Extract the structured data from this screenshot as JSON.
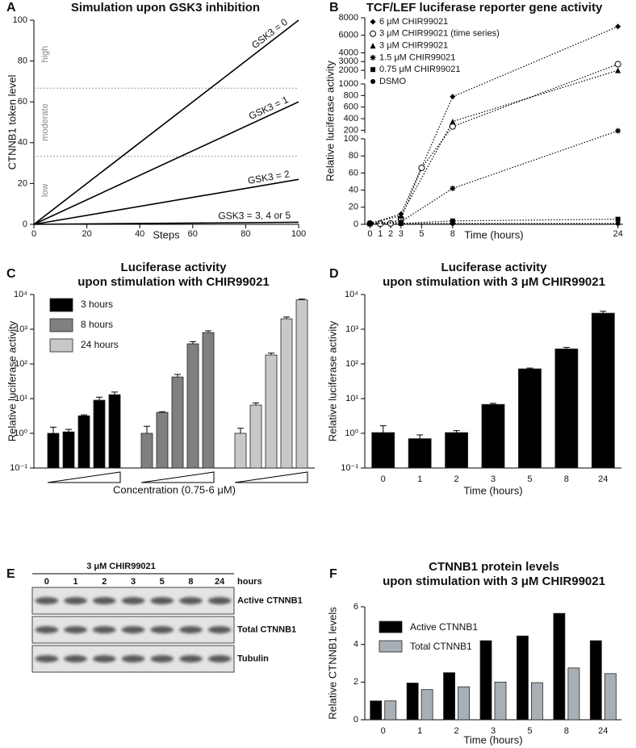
{
  "chart_data": [
    {
      "panel": "A",
      "type": "line",
      "title": [
        "Simulation upon GSK3 inhibition"
      ],
      "xlabel": "Steps",
      "ylabel": "CTNNB1 token level",
      "x": [
        0,
        100
      ],
      "xlim": [
        0,
        100
      ],
      "ylim": [
        0,
        100
      ],
      "xticks": [
        0,
        20,
        40,
        60,
        80,
        100
      ],
      "yticks": [
        0,
        20,
        40,
        60,
        80,
        100
      ],
      "line_labels": true,
      "regions": {
        "thresholds": [
          33.3,
          66.7
        ],
        "labels": [
          "low",
          "moderate",
          "high"
        ]
      },
      "series": [
        {
          "name": "GSK3 = 0",
          "color": "#000000",
          "values": [
            0,
            100
          ]
        },
        {
          "name": "GSK3 = 1",
          "color": "#000000",
          "values": [
            0,
            60
          ]
        },
        {
          "name": "GSK3 = 2",
          "color": "#000000",
          "values": [
            0,
            22
          ]
        },
        {
          "name": "GSK3 = 3, 4 or 5",
          "color": "#000000",
          "values": [
            0,
            1
          ]
        }
      ]
    },
    {
      "panel": "B",
      "type": "line",
      "title": [
        "TCF/LEF luciferase reporter gene activity"
      ],
      "xlabel": "Time (hours)",
      "ylabel": "Relative luciferase activity",
      "xlim": [
        -0.5,
        24.5
      ],
      "xticks": [
        0,
        1,
        2,
        3,
        5,
        8,
        24
      ],
      "legend": "upper left",
      "line_style": "dotted",
      "ysegments": [
        {
          "ylim": [
            0,
            100
          ],
          "yticks": [
            0,
            20,
            40,
            60,
            80,
            100
          ]
        },
        {
          "ylim": [
            150,
            1000
          ],
          "yticks": [
            200,
            400,
            600,
            800,
            1000
          ]
        },
        {
          "ylim": [
            1000,
            8000
          ],
          "yticks": [
            2000,
            3000,
            4000,
            6000,
            8000
          ]
        }
      ],
      "series": [
        {
          "name": "6 μM CHIR99021",
          "marker": "diamond",
          "color": "#000000",
          "x": [
            0,
            3,
            8,
            24
          ],
          "values": [
            1,
            12,
            780,
            7000
          ]
        },
        {
          "name": "3 μM CHIR99021 (time series)",
          "marker": "circle",
          "color": "#000000",
          "x": [
            0,
            1,
            2,
            3,
            5,
            8,
            24
          ],
          "values": [
            1,
            0.7,
            1,
            6.6,
            66,
            265,
            2700
          ]
        },
        {
          "name": "3 μM CHIR99021",
          "marker": "triangle",
          "color": "#000000",
          "x": [
            0,
            3,
            8,
            24
          ],
          "values": [
            1,
            10,
            350,
            2000
          ]
        },
        {
          "name": "1.5 μM CHIR99021",
          "marker": "asterisk",
          "color": "#000000",
          "x": [
            0,
            3,
            8,
            24
          ],
          "values": [
            1,
            3,
            42,
            190
          ]
        },
        {
          "name": "0.75 μM CHIR99021",
          "marker": "square",
          "color": "#000000",
          "x": [
            0,
            3,
            8,
            24
          ],
          "values": [
            1,
            1,
            4,
            6
          ]
        },
        {
          "name": "DSMO",
          "marker": "dot",
          "color": "#000000",
          "x": [
            0,
            3,
            8,
            24
          ],
          "values": [
            1,
            1,
            1,
            1
          ]
        }
      ]
    },
    {
      "panel": "C",
      "type": "bar",
      "title": [
        "Luciferase activity",
        "upon stimulation with CHIR99021"
      ],
      "xlabel": "Concentration (0.75-6 μM)",
      "ylabel": "Relative luciferase activity",
      "log": true,
      "ylim": [
        0.1,
        10000
      ],
      "yticks": [
        {
          "value": 0.1,
          "label": "10⁻¹"
        },
        {
          "value": 1,
          "label": "10⁰"
        },
        {
          "value": 10,
          "label": "10¹"
        },
        {
          "value": 100,
          "label": "10²"
        },
        {
          "value": 1000,
          "label": "10³"
        },
        {
          "value": 10000,
          "label": "10⁴"
        }
      ],
      "legend": "upper left",
      "series": [
        {
          "name": "3 hours",
          "color": "#000000",
          "values": [
            1.0,
            1.1,
            3.2,
            9,
            13
          ],
          "errors": [
            0.5,
            0.2,
            0.2,
            2,
            2.5
          ]
        },
        {
          "name": "8 hours",
          "color": "#808080",
          "values": [
            1.0,
            4.0,
            42,
            380,
            800
          ],
          "errors": [
            0.6,
            0.2,
            8,
            60,
            100
          ]
        },
        {
          "name": "24 hours",
          "color": "#c8c8c8",
          "values": [
            1.0,
            6.5,
            180,
            2000,
            7000
          ],
          "errors": [
            0.4,
            1,
            25,
            250,
            400
          ]
        }
      ]
    },
    {
      "panel": "D",
      "type": "bar",
      "title": [
        "Luciferase activity",
        "upon stimulation with 3 μM CHIR99021"
      ],
      "xlabel": "Time (hours)",
      "ylabel": "Relative luciferase activity",
      "log": true,
      "ylim": [
        0.1,
        10000
      ],
      "yticks": [
        {
          "value": 0.1,
          "label": "10⁻¹"
        },
        {
          "value": 1,
          "label": "10⁰"
        },
        {
          "value": 10,
          "label": "10¹"
        },
        {
          "value": 100,
          "label": "10²"
        },
        {
          "value": 1000,
          "label": "10³"
        },
        {
          "value": 10000,
          "label": "10⁴"
        }
      ],
      "categories": [
        "0",
        "1",
        "2",
        "3",
        "5",
        "8",
        "24"
      ],
      "color": "#000000",
      "values": [
        1.05,
        0.7,
        1.05,
        6.8,
        72,
        270,
        2900
      ],
      "errors": [
        0.6,
        0.2,
        0.15,
        0.5,
        4,
        30,
        400
      ]
    },
    {
      "panel": "E",
      "type": "blot",
      "title": "3 μM CHIR99021",
      "lanes": [
        "0",
        "1",
        "2",
        "3",
        "5",
        "8",
        "24"
      ],
      "lane_unit": "hours",
      "rows": [
        "Active CTNNB1",
        "Total CTNNB1",
        "Tubulin"
      ]
    },
    {
      "panel": "F",
      "type": "bar",
      "title": [
        "CTNNB1 protein levels",
        "upon stimulation with 3 μM CHIR99021"
      ],
      "xlabel": "Time (hours)",
      "ylabel": "Relative CTNNB1 levels",
      "ylim": [
        0,
        6
      ],
      "yticks": [
        0,
        2,
        4,
        6
      ],
      "legend": "upper left",
      "categories": [
        "0",
        "1",
        "2",
        "3",
        "5",
        "8",
        "24"
      ],
      "series": [
        {
          "name": "Active CTNNB1",
          "color": "#000000",
          "values": [
            1,
            1.95,
            2.5,
            4.2,
            4.45,
            5.65,
            4.2
          ]
        },
        {
          "name": "Total CTNNB1",
          "color": "#a8b0b5",
          "values": [
            1,
            1.6,
            1.75,
            2.0,
            1.97,
            2.75,
            2.45
          ]
        }
      ]
    }
  ]
}
